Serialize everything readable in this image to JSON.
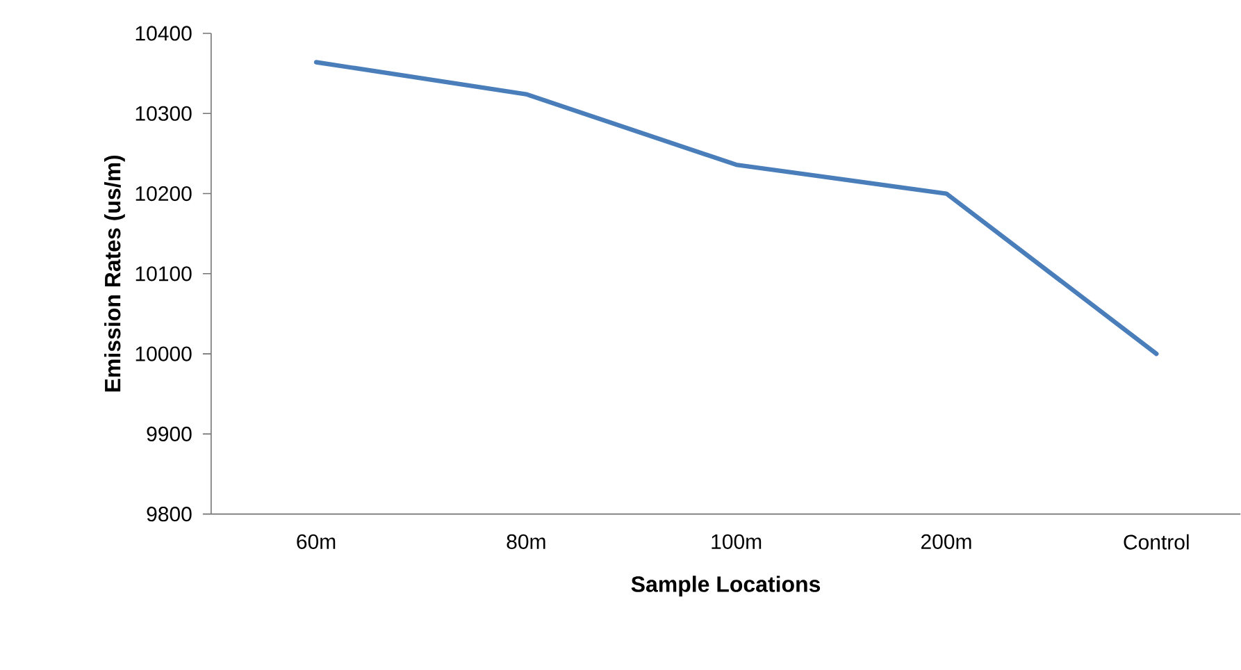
{
  "chart_data": {
    "type": "line",
    "xlabel": "Sample Locations",
    "ylabel": "Emission Rates (us/m)",
    "categories": [
      "60m",
      "80m",
      "100m",
      "200m",
      "Control"
    ],
    "series": [
      {
        "color": "#4a7ebb",
        "values": [
          10364,
          10324,
          10236,
          10200,
          10000
        ]
      }
    ],
    "ylim": [
      9800,
      10400
    ],
    "yticks": [
      9800,
      9900,
      10000,
      10100,
      10200,
      10300,
      10400
    ],
    "grid": false,
    "marker": "none",
    "line_style": "solid"
  }
}
